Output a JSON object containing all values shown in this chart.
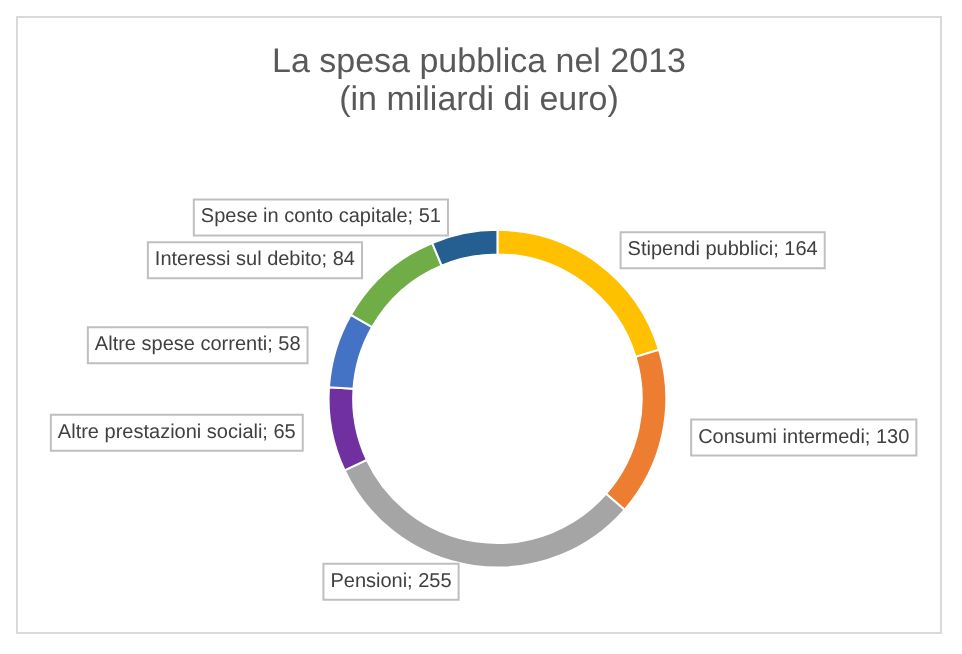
{
  "chart_data": {
    "type": "donut",
    "title": "La spesa pubblica nel 2013",
    "subtitle": "(in miliardi di euro)",
    "categories": [
      "Stipendi pubblici",
      "Consumi intermedi",
      "Pensioni",
      "Altre prestazioni sociali",
      "Altre spese correnti",
      "Interessi sul debito",
      "Spese in conto capitale"
    ],
    "values": [
      164,
      130,
      255,
      65,
      58,
      84,
      51
    ],
    "colors": [
      "#ffc000",
      "#ed7d31",
      "#a5a5a5",
      "#7030a0",
      "#4472c4",
      "#70ad47",
      "#255e91"
    ],
    "value_labels": [
      "; 164",
      "; 130",
      "; 255",
      "; 65",
      "; 58",
      "; 84",
      "; 51"
    ],
    "legend": false
  }
}
